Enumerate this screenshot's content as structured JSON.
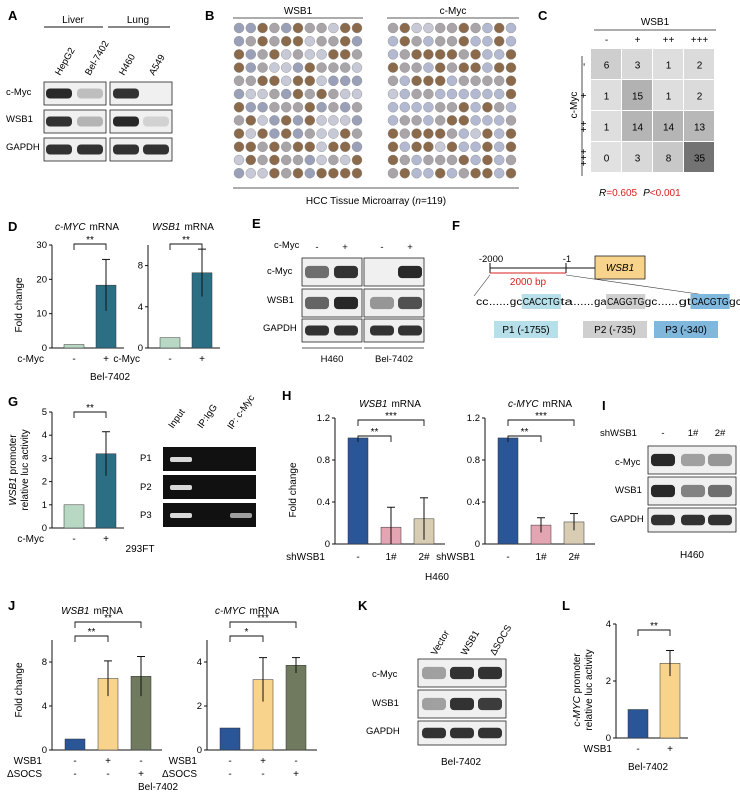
{
  "panels": {
    "A": "A",
    "B": "B",
    "C": "C",
    "D": "D",
    "E": "E",
    "F": "F",
    "G": "G",
    "H": "H",
    "I": "I",
    "J": "J",
    "K": "K",
    "L": "L"
  },
  "wb_labels": {
    "cmyc": "c-Myc",
    "wsb1": "WSB1",
    "gapdh": "GAPDH",
    "shwsb1": "shWSB1"
  },
  "panel_a": {
    "groups": [
      "Liver",
      "Lung"
    ],
    "lanes": [
      "HepG2",
      "Bel-7402",
      "H460",
      "A549"
    ],
    "cmyc": [
      0.9,
      0.15,
      0.85,
      0.0
    ],
    "wsb1": [
      0.85,
      0.2,
      0.9,
      0.05
    ],
    "gapdh": [
      0.85,
      0.85,
      0.85,
      0.85
    ]
  },
  "panel_b": {
    "titles": [
      "WSB1",
      "c-Myc"
    ],
    "caption": "HCC Tissue Microarray (",
    "n_label": "n",
    "n_value": "=119)"
  },
  "panel_c": {
    "col_header": "WSB1",
    "row_header": "c-Myc",
    "levels": [
      "-",
      "+",
      "++",
      "+++"
    ],
    "matrix": [
      [
        6,
        3,
        1,
        2
      ],
      [
        1,
        15,
        1,
        2
      ],
      [
        1,
        14,
        14,
        13
      ],
      [
        0,
        3,
        8,
        35
      ]
    ],
    "r_label": "R",
    "r_value": "=0.605",
    "p_label": "P",
    "p_value": "<0.001"
  },
  "panel_d": {
    "ylabel": "Fold change",
    "xlabel": "c-Myc",
    "cell_line": "Bel-7402",
    "signs": [
      "-",
      "+"
    ],
    "sig": [
      "**",
      "**"
    ],
    "charts": [
      {
        "gene": "c-MYC",
        "unit": "mRNA",
        "ylim": [
          0,
          30
        ],
        "yticks": [
          "0",
          "10",
          "20",
          "30"
        ],
        "values": [
          1,
          18.3
        ],
        "errors": [
          0,
          7.5
        ],
        "colors": [
          "#b8d8c4",
          "#2c6e84"
        ]
      },
      {
        "gene": "WSB1",
        "unit": "mRNA",
        "ylim": [
          0,
          10
        ],
        "yticks": [
          "0",
          "4",
          "8"
        ],
        "values": [
          1,
          7.3
        ],
        "errors": [
          0,
          2.3
        ],
        "colors": [
          "#b8d8c4",
          "#2c6e84"
        ]
      }
    ]
  },
  "panel_e": {
    "signs": [
      "-",
      "+",
      "-",
      "+"
    ],
    "lanes_group": [
      "H460",
      "Bel-7402"
    ],
    "cmyc": [
      0.55,
      0.85,
      0.0,
      0.9
    ],
    "wsb1": [
      0.6,
      0.9,
      0.35,
      0.7
    ],
    "gapdh": [
      0.85,
      0.85,
      0.85,
      0.85
    ]
  },
  "panel_f": {
    "pos_start": "-2000",
    "pos_end": "-1",
    "span": "2000 bp",
    "gene": "WSB1",
    "seq": [
      {
        "t": "cc",
        "c": ""
      },
      {
        "t": "......",
        "c": ""
      },
      {
        "t": "gc",
        "c": ""
      },
      {
        "t": "CACCTG",
        "c": "#b6dfe9"
      },
      {
        "t": "ta",
        "c": ""
      },
      {
        "t": "......",
        "c": ""
      },
      {
        "t": "ga",
        "c": ""
      },
      {
        "t": "CAGGTG",
        "c": "#cfcfcf"
      },
      {
        "t": "gc",
        "c": ""
      },
      {
        "t": "......",
        "c": ""
      },
      {
        "t": "gt",
        "c": ""
      },
      {
        "t": "CACGTG",
        "c": "#7fb7dd"
      },
      {
        "t": "gc",
        "c": ""
      }
    ],
    "sites": [
      {
        "label": "P1  (-1755)",
        "color": "#b6dfe9"
      },
      {
        "label": "P2 (-735)",
        "color": "#cfcfcf"
      },
      {
        "label": "P3 (-340)",
        "color": "#7fb7dd"
      }
    ]
  },
  "panel_g": {
    "ylabel_italic": "WSB1",
    "ylabel_rest": " promoter",
    "ylabel2": "relative luc activity",
    "xlabel": "c-Myc",
    "cell_line": "293FT",
    "signs": [
      "-",
      "+"
    ],
    "sig": "**",
    "ylim": [
      0,
      5
    ],
    "yticks": [
      "0",
      "1",
      "2",
      "3",
      "4",
      "5"
    ],
    "values": [
      1,
      3.2
    ],
    "errors": [
      0,
      0.95
    ],
    "colors": [
      "#b8d8c4",
      "#2c6e84"
    ],
    "chip_cols": [
      "Input",
      "IP:IgG",
      "IP: c-Myc"
    ],
    "chip_rows": [
      "P1",
      "P2",
      "P3"
    ],
    "chip": [
      [
        0.8,
        0.0,
        0.0
      ],
      [
        0.8,
        0.0,
        0.0
      ],
      [
        0.8,
        0.0,
        0.45
      ]
    ]
  },
  "panel_h": {
    "ylabel": "Fold change",
    "xlabel": "shWSB1",
    "cell_line": "H460",
    "labels": [
      "-",
      "1#",
      "2#"
    ],
    "sig": [
      "**",
      "***"
    ],
    "charts": [
      {
        "gene": "WSB1",
        "unit": "mRNA",
        "ylim": [
          0,
          1.2
        ],
        "yticks": [
          "0",
          "0.4",
          "0.8",
          "1.2"
        ],
        "values": [
          1.01,
          0.16,
          0.24
        ],
        "errors": [
          0,
          0.19,
          0.2
        ],
        "colors": [
          "#2a5597",
          "#e4a5b3",
          "#d8cdb2"
        ]
      },
      {
        "gene": "c-MYC",
        "unit": "mRNA",
        "ylim": [
          0,
          1.2
        ],
        "yticks": [
          "0",
          "0.4",
          "0.8",
          "1.2"
        ],
        "values": [
          1.01,
          0.18,
          0.21
        ],
        "errors": [
          0,
          0.07,
          0.08
        ],
        "colors": [
          "#2a5597",
          "#e4a5b3",
          "#d8cdb2"
        ]
      }
    ]
  },
  "panel_i": {
    "labels": [
      "-",
      "1#",
      "2#"
    ],
    "cell_line": "H460",
    "cmyc": [
      0.9,
      0.3,
      0.35
    ],
    "wsb1": [
      0.9,
      0.45,
      0.55
    ],
    "gapdh": [
      0.85,
      0.85,
      0.85
    ]
  },
  "panel_j": {
    "ylabel": "Fold change",
    "row_labels": [
      "WSB1",
      "ΔSOCS"
    ],
    "wsb1_signs": [
      "-",
      "+",
      "-"
    ],
    "socs_signs": [
      "-",
      "-",
      "+"
    ],
    "cell_line": "Bel-7402",
    "charts": [
      {
        "gene": "WSB1",
        "unit": "mRNA",
        "ylim": [
          0,
          10
        ],
        "yticks": [
          "0",
          "4",
          "8"
        ],
        "values": [
          1,
          6.5,
          6.7
        ],
        "errors": [
          0,
          1.6,
          1.8
        ],
        "sig": [
          "**",
          "**"
        ],
        "colors": [
          "#2a5597",
          "#f8d38c",
          "#6f7a5e"
        ]
      },
      {
        "gene": "c-MYC",
        "unit": "mRNA",
        "ylim": [
          0,
          5
        ],
        "yticks": [
          "0",
          "2",
          "4"
        ],
        "values": [
          1,
          3.2,
          3.85
        ],
        "errors": [
          0,
          1.0,
          0.35
        ],
        "sig": [
          "*",
          "***"
        ],
        "colors": [
          "#2a5597",
          "#f8d38c",
          "#6f7a5e"
        ]
      }
    ]
  },
  "panel_k": {
    "lanes": [
      "Vector",
      "WSB1",
      "ΔSOCS"
    ],
    "cell_line": "Bel-7402",
    "cmyc": [
      0.3,
      0.85,
      0.85
    ],
    "wsb1": [
      0.3,
      0.85,
      0.8
    ],
    "gapdh": [
      0.85,
      0.85,
      0.85
    ]
  },
  "panel_l": {
    "ylabel_italic": "c-MYC",
    "ylabel_rest": " promoter",
    "ylabel2": "relative luc activity",
    "xlabel": "WSB1",
    "cell_line": "Bel-7402",
    "signs": [
      "-",
      "+"
    ],
    "sig": "**",
    "ylim": [
      0,
      4
    ],
    "yticks": [
      "0",
      "2",
      "4"
    ],
    "values": [
      1,
      2.62
    ],
    "errors": [
      0,
      0.45
    ],
    "colors": [
      "#2a5597",
      "#f8d38c"
    ]
  }
}
